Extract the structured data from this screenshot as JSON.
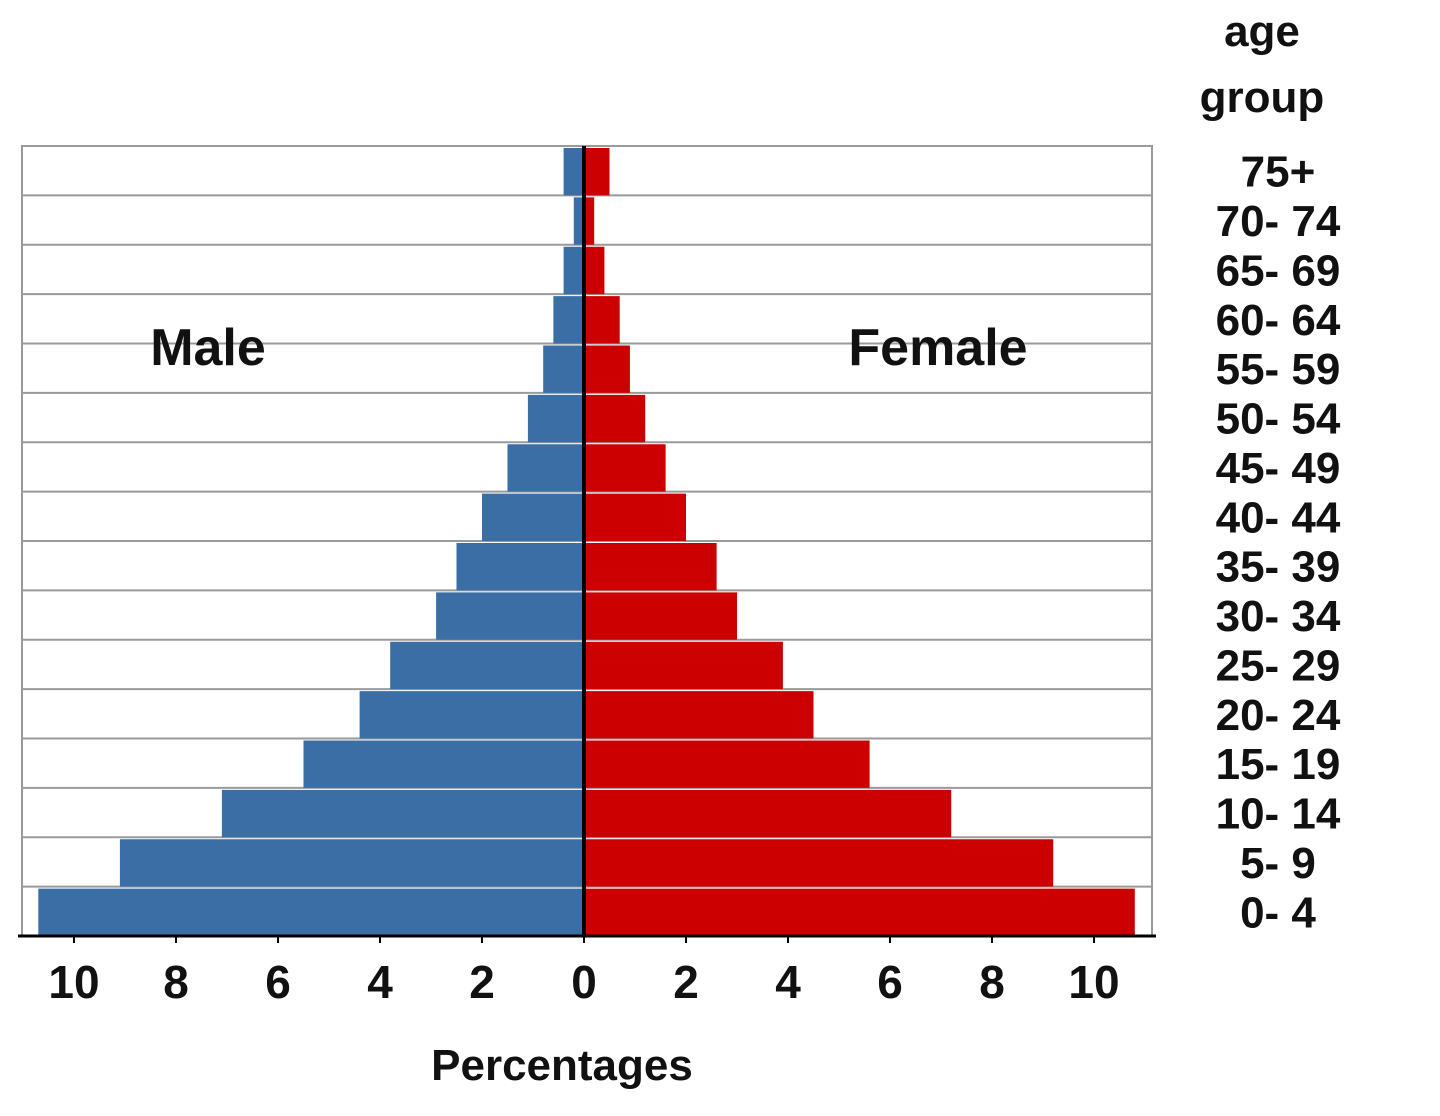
{
  "chart_data": {
    "type": "bar",
    "orientation": "horizontal",
    "subtype": "population-pyramid",
    "categories": [
      "0- 4",
      "5- 9",
      "10- 14",
      "15- 19",
      "20- 24",
      "25- 29",
      "30- 34",
      "35- 39",
      "40- 44",
      "45- 49",
      "50- 54",
      "55- 59",
      "60- 64",
      "65- 69",
      "70- 74",
      "75+"
    ],
    "series": [
      {
        "name": "Male",
        "values": [
          10.7,
          9.1,
          7.1,
          5.5,
          4.4,
          3.8,
          2.9,
          2.5,
          2.0,
          1.5,
          1.1,
          0.8,
          0.6,
          0.4,
          0.2,
          0.4
        ],
        "color": "#3a6ea5"
      },
      {
        "name": "Female",
        "values": [
          10.8,
          9.2,
          7.2,
          5.6,
          4.5,
          3.9,
          3.0,
          2.6,
          2.0,
          1.6,
          1.2,
          0.9,
          0.7,
          0.4,
          0.2,
          0.5
        ],
        "color": "#cc0000"
      }
    ],
    "xlabel": "Percentages",
    "ylabel": "age group",
    "x_ticks": [
      "10",
      "8",
      "6",
      "4",
      "2",
      "0",
      "2",
      "4",
      "6",
      "8",
      "10"
    ],
    "x_tick_values": [
      -10,
      -8,
      -6,
      -4,
      -2,
      0,
      2,
      4,
      6,
      8,
      10
    ],
    "xlim": [
      -11,
      11
    ],
    "grid": true,
    "ylabel_position": "top-right"
  }
}
